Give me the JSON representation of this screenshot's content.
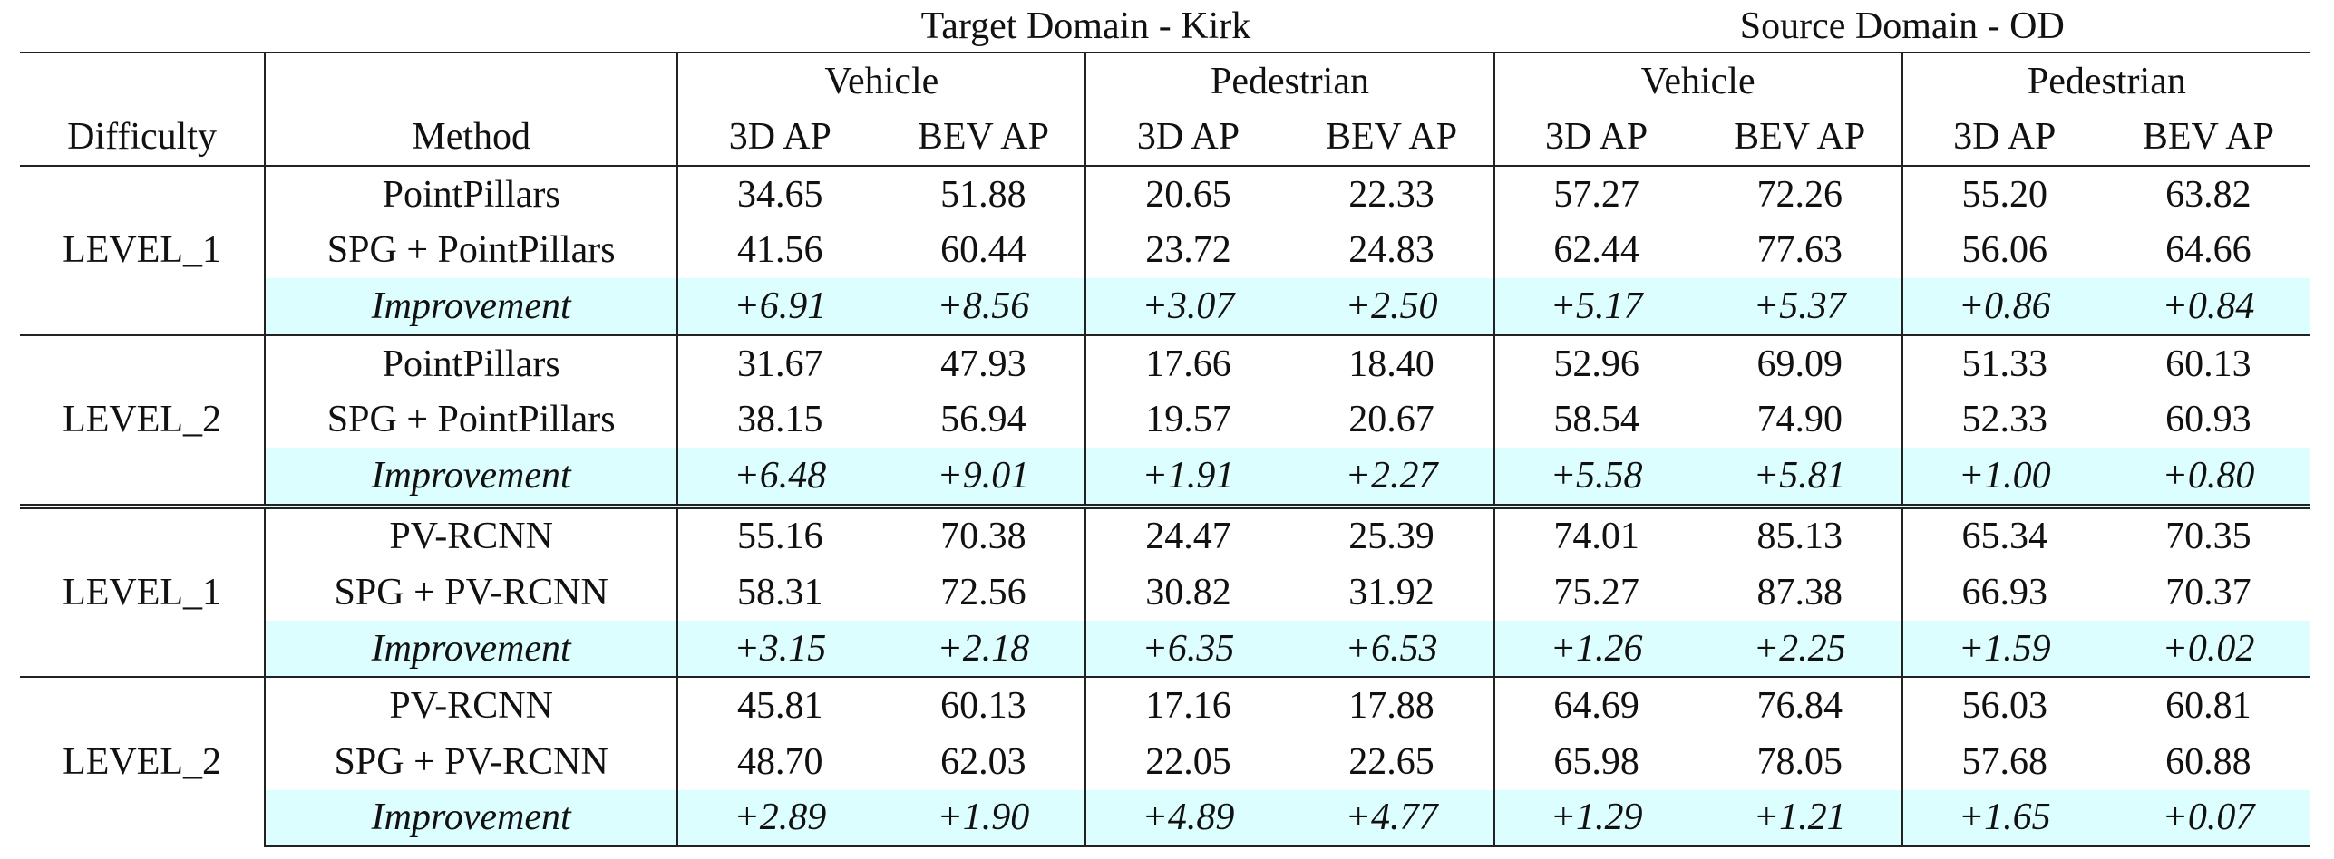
{
  "header": {
    "domains": [
      "Target Domain - Kirk",
      "Source Domain - OD"
    ],
    "classes": [
      "Vehicle",
      "Pedestrian",
      "Vehicle",
      "Pedestrian"
    ],
    "difficulty_label": "Difficulty",
    "method_label": "Method",
    "metrics": [
      "3D AP",
      "BEV AP",
      "3D AP",
      "BEV AP",
      "3D AP",
      "BEV AP",
      "3D AP",
      "BEV AP"
    ]
  },
  "blocks": [
    {
      "difficulty": "LEVEL_1",
      "rows": [
        {
          "method": "PointPillars",
          "values": [
            "34.65",
            "51.88",
            "20.65",
            "22.33",
            "57.27",
            "72.26",
            "55.20",
            "63.82"
          ]
        },
        {
          "method": "SPG + PointPillars",
          "values": [
            "41.56",
            "60.44",
            "23.72",
            "24.83",
            "62.44",
            "77.63",
            "56.06",
            "64.66"
          ]
        },
        {
          "method": "Improvement",
          "values": [
            "+6.91",
            "+8.56",
            "+3.07",
            "+2.50",
            "+5.17",
            "+5.37",
            "+0.86",
            "+0.84"
          ]
        }
      ]
    },
    {
      "difficulty": "LEVEL_2",
      "rows": [
        {
          "method": "PointPillars",
          "values": [
            "31.67",
            "47.93",
            "17.66",
            "18.40",
            "52.96",
            "69.09",
            "51.33",
            "60.13"
          ]
        },
        {
          "method": "SPG + PointPillars",
          "values": [
            "38.15",
            "56.94",
            "19.57",
            "20.67",
            "58.54",
            "74.90",
            "52.33",
            "60.93"
          ]
        },
        {
          "method": "Improvement",
          "values": [
            "+6.48",
            "+9.01",
            "+1.91",
            "+2.27",
            "+5.58",
            "+5.81",
            "+1.00",
            "+0.80"
          ]
        }
      ]
    },
    {
      "difficulty": "LEVEL_1",
      "rows": [
        {
          "method": "PV-RCNN",
          "values": [
            "55.16",
            "70.38",
            "24.47",
            "25.39",
            "74.01",
            "85.13",
            "65.34",
            "70.35"
          ]
        },
        {
          "method": "SPG + PV-RCNN",
          "values": [
            "58.31",
            "72.56",
            "30.82",
            "31.92",
            "75.27",
            "87.38",
            "66.93",
            "70.37"
          ]
        },
        {
          "method": "Improvement",
          "values": [
            "+3.15",
            "+2.18",
            "+6.35",
            "+6.53",
            "+1.26",
            "+2.25",
            "+1.59",
            "+0.02"
          ]
        }
      ]
    },
    {
      "difficulty": "LEVEL_2",
      "rows": [
        {
          "method": "PV-RCNN",
          "values": [
            "45.81",
            "60.13",
            "17.16",
            "17.88",
            "64.69",
            "76.84",
            "56.03",
            "60.81"
          ]
        },
        {
          "method": "SPG + PV-RCNN",
          "values": [
            "48.70",
            "62.03",
            "22.05",
            "22.65",
            "65.98",
            "78.05",
            "57.68",
            "60.88"
          ]
        },
        {
          "method": "Improvement",
          "values": [
            "+2.89",
            "+1.90",
            "+4.89",
            "+4.77",
            "+1.29",
            "+1.21",
            "+1.65",
            "+0.07"
          ]
        }
      ]
    }
  ],
  "colors": {
    "highlight": "#dcfefe",
    "rule": "#222222"
  }
}
